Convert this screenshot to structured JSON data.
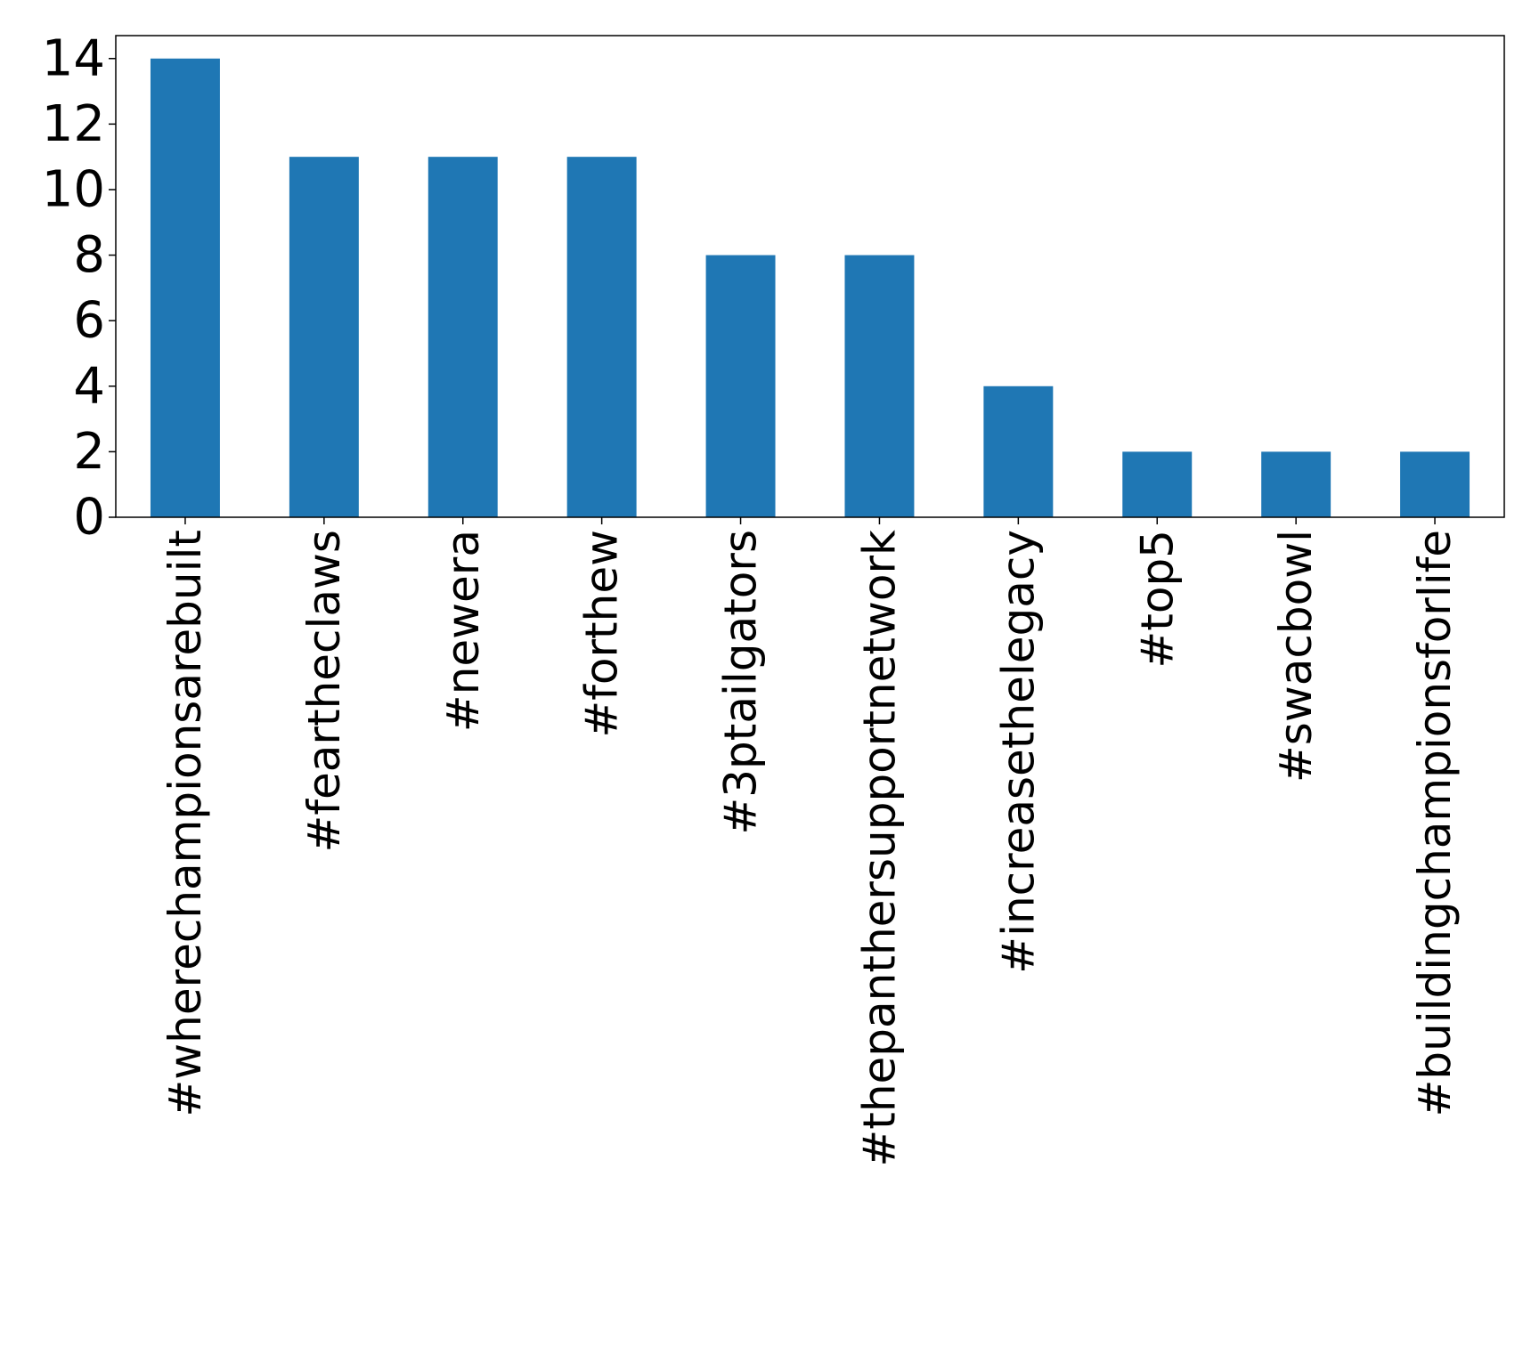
{
  "chart_data": {
    "type": "bar",
    "categories": [
      "#wherechampionsarebuilt",
      "#feartheclaws",
      "#newera",
      "#forthew",
      "#3ptailgators",
      "#thepanthersupportnetwork",
      "#increasethelegacy",
      "#top5",
      "#swacbowl",
      "#buildingchampionsforlife"
    ],
    "values": [
      14,
      11,
      11,
      11,
      8,
      8,
      4,
      2,
      2,
      2
    ],
    "title": "",
    "xlabel": "",
    "ylabel": "",
    "ylim": [
      0,
      14.7
    ],
    "yticks": [
      0,
      2,
      4,
      6,
      8,
      10,
      12,
      14
    ],
    "grid": false,
    "legend": "none",
    "bar_color": "#1f77b4",
    "axis_color": "#000000",
    "x_tick_rotation": "vertical"
  }
}
